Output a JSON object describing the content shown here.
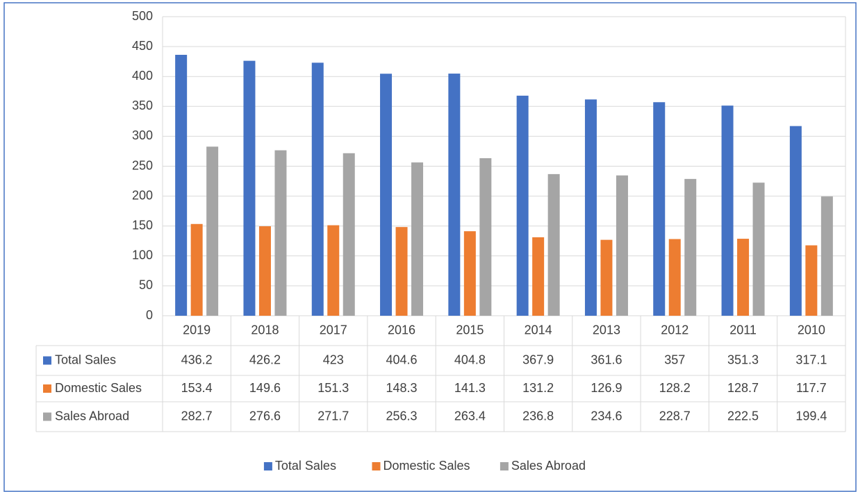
{
  "chart_data": {
    "type": "bar",
    "categories": [
      "2019",
      "2018",
      "2017",
      "2016",
      "2015",
      "2014",
      "2013",
      "2012",
      "2011",
      "2010"
    ],
    "series": [
      {
        "name": "Total Sales",
        "color": "#4472c4",
        "values": [
          436.2,
          426.2,
          423,
          404.6,
          404.8,
          367.9,
          361.6,
          357,
          351.3,
          317.1
        ]
      },
      {
        "name": "Domestic Sales",
        "color": "#ed7d31",
        "values": [
          153.4,
          149.6,
          151.3,
          148.3,
          141.3,
          131.2,
          126.9,
          128.2,
          128.7,
          117.7
        ]
      },
      {
        "name": "Sales Abroad",
        "color": "#a5a5a5",
        "values": [
          282.7,
          276.6,
          271.7,
          256.3,
          263.4,
          236.8,
          234.6,
          228.7,
          222.5,
          199.4
        ]
      }
    ],
    "ylim": [
      0,
      500
    ],
    "yticks": [
      0,
      50,
      100,
      150,
      200,
      250,
      300,
      350,
      400,
      450,
      500
    ],
    "grid": true,
    "legend": "bottom"
  }
}
